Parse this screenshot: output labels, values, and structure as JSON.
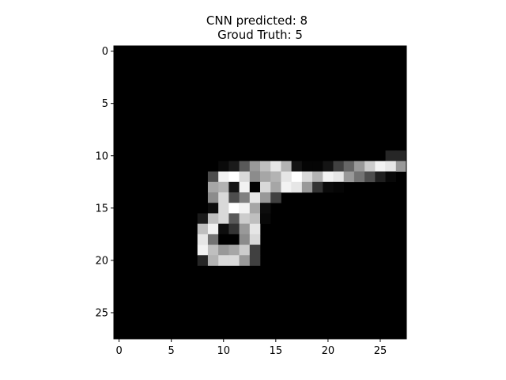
{
  "chart_data": {
    "type": "heatmap",
    "title_line1": "CNN predicted: 8",
    "title_line2": "Groud Truth: 5",
    "xlabel": "",
    "ylabel": "",
    "rows": 28,
    "cols": 28,
    "xlim": [
      -0.5,
      27.5
    ],
    "ylim": [
      27.5,
      -0.5
    ],
    "x_ticks": [
      0,
      5,
      10,
      15,
      20,
      25
    ],
    "y_ticks": [
      0,
      5,
      10,
      15,
      20,
      25
    ],
    "colormap": "gray",
    "background_value": 0,
    "nonzero_pixels": [
      [
        10,
        26,
        0.15
      ],
      [
        10,
        27,
        0.15
      ],
      [
        11,
        10,
        0.04
      ],
      [
        11,
        11,
        0.1
      ],
      [
        11,
        12,
        0.35
      ],
      [
        11,
        13,
        0.6
      ],
      [
        11,
        14,
        0.75
      ],
      [
        11,
        15,
        0.9
      ],
      [
        11,
        16,
        0.7
      ],
      [
        11,
        17,
        0.08
      ],
      [
        11,
        18,
        0.02
      ],
      [
        11,
        19,
        0.02
      ],
      [
        11,
        20,
        0.08
      ],
      [
        11,
        21,
        0.25
      ],
      [
        11,
        22,
        0.4
      ],
      [
        11,
        23,
        0.6
      ],
      [
        11,
        24,
        0.8
      ],
      [
        11,
        25,
        0.95
      ],
      [
        11,
        26,
        0.9
      ],
      [
        11,
        27,
        0.6
      ],
      [
        12,
        9,
        0.3
      ],
      [
        12,
        10,
        0.95
      ],
      [
        12,
        11,
        1.0
      ],
      [
        12,
        12,
        0.85
      ],
      [
        12,
        13,
        0.55
      ],
      [
        12,
        14,
        0.65
      ],
      [
        12,
        15,
        0.7
      ],
      [
        12,
        16,
        0.9
      ],
      [
        12,
        17,
        1.0
      ],
      [
        12,
        18,
        0.85
      ],
      [
        12,
        19,
        0.7
      ],
      [
        12,
        20,
        0.95
      ],
      [
        12,
        21,
        0.9
      ],
      [
        12,
        22,
        0.6
      ],
      [
        12,
        23,
        0.45
      ],
      [
        12,
        24,
        0.3
      ],
      [
        12,
        25,
        0.12
      ],
      [
        12,
        26,
        0.03
      ],
      [
        13,
        9,
        0.65
      ],
      [
        13,
        10,
        0.7
      ],
      [
        13,
        11,
        0.08
      ],
      [
        13,
        12,
        0.95
      ],
      [
        13,
        13,
        0.0
      ],
      [
        13,
        14,
        0.85
      ],
      [
        13,
        15,
        0.65
      ],
      [
        13,
        16,
        0.95
      ],
      [
        13,
        17,
        0.9
      ],
      [
        13,
        18,
        0.6
      ],
      [
        13,
        19,
        0.2
      ],
      [
        13,
        20,
        0.04
      ],
      [
        13,
        21,
        0.02
      ],
      [
        14,
        9,
        0.55
      ],
      [
        14,
        10,
        0.85
      ],
      [
        14,
        11,
        0.3
      ],
      [
        14,
        12,
        0.5
      ],
      [
        14,
        13,
        0.9
      ],
      [
        14,
        14,
        0.6
      ],
      [
        14,
        15,
        0.25
      ],
      [
        15,
        9,
        0.05
      ],
      [
        15,
        10,
        0.85
      ],
      [
        15,
        11,
        1.0
      ],
      [
        15,
        12,
        0.95
      ],
      [
        15,
        13,
        0.65
      ],
      [
        15,
        14,
        0.05
      ],
      [
        16,
        8,
        0.1
      ],
      [
        16,
        9,
        0.75
      ],
      [
        16,
        10,
        0.85
      ],
      [
        16,
        11,
        0.35
      ],
      [
        16,
        12,
        0.8
      ],
      [
        16,
        13,
        0.75
      ],
      [
        16,
        14,
        0.03
      ],
      [
        17,
        8,
        0.75
      ],
      [
        17,
        9,
        0.95
      ],
      [
        17,
        10,
        0.05
      ],
      [
        17,
        11,
        0.2
      ],
      [
        17,
        12,
        0.6
      ],
      [
        17,
        13,
        0.9
      ],
      [
        18,
        8,
        0.9
      ],
      [
        18,
        9,
        0.45
      ],
      [
        18,
        10,
        0.0
      ],
      [
        18,
        11,
        0.0
      ],
      [
        18,
        12,
        0.55
      ],
      [
        18,
        13,
        0.85
      ],
      [
        19,
        8,
        0.95
      ],
      [
        19,
        9,
        0.75
      ],
      [
        19,
        10,
        0.6
      ],
      [
        19,
        11,
        0.65
      ],
      [
        19,
        12,
        0.8
      ],
      [
        19,
        13,
        0.25
      ],
      [
        20,
        8,
        0.15
      ],
      [
        20,
        9,
        0.7
      ],
      [
        20,
        10,
        0.85
      ],
      [
        20,
        11,
        0.85
      ],
      [
        20,
        12,
        0.6
      ],
      [
        20,
        13,
        0.25
      ]
    ]
  }
}
